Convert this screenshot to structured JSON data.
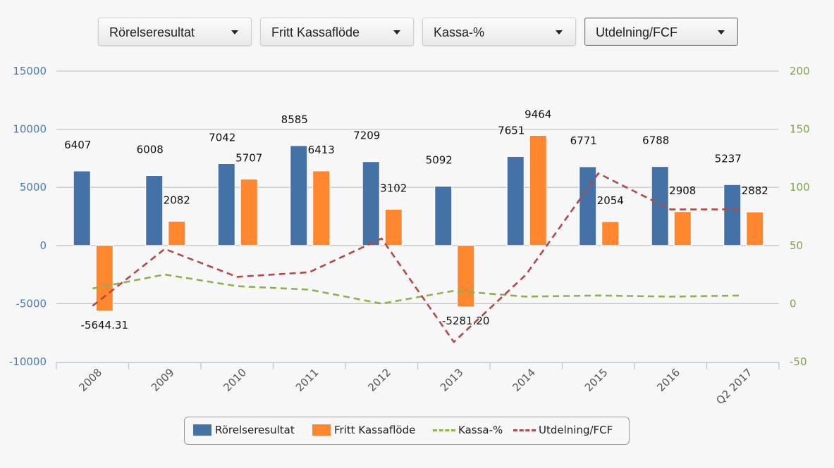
{
  "toolbar": {
    "dropdowns": [
      {
        "label": "Rörelseresultat"
      },
      {
        "label": "Fritt Kassaflöde"
      },
      {
        "label": "Kassa-%"
      },
      {
        "label": "Utdelning/FCF"
      }
    ]
  },
  "legend": {
    "items": [
      {
        "label": "Rörelseresultat"
      },
      {
        "label": "Fritt Kassaflöde"
      },
      {
        "label": "Kassa-%"
      },
      {
        "label": "Utdelning/FCF"
      }
    ]
  },
  "colors": {
    "rorelseresultat": "#4472a6",
    "fritt_kassaflode": "#fd862e",
    "kassa": "#8eb050",
    "utdelning": "#b04a46",
    "left_axis": "#4a7bb7",
    "right_axis": "#7ea44a"
  },
  "chart_data": {
    "type": "bar",
    "categories": [
      "2008",
      "2009",
      "2010",
      "2011",
      "2012",
      "2013",
      "2014",
      "2015",
      "2016",
      "Q2 2017"
    ],
    "left_axis": {
      "ylim": [
        -10000,
        15000
      ],
      "ticks": [
        "15000",
        "10000",
        "5000",
        "0",
        "-5000",
        "-10000"
      ]
    },
    "right_axis": {
      "ylim": [
        -50,
        200
      ],
      "ticks": [
        "200",
        "150",
        "100",
        "50",
        "0",
        "-50"
      ]
    },
    "grid": true,
    "legend_position": "bottom",
    "series": [
      {
        "name": "Rörelseresultat",
        "type": "bar",
        "axis": "left",
        "values": [
          6407,
          6008,
          7042,
          8585,
          7209,
          5092,
          7651,
          6771,
          6788,
          5237
        ],
        "labels": [
          "6407",
          "6008",
          "7042",
          "8585",
          "7209",
          "5092",
          "7651",
          "6771",
          "6788",
          "5237"
        ]
      },
      {
        "name": "Fritt Kassaflöde",
        "type": "bar",
        "axis": "left",
        "values": [
          -5644.31,
          2082,
          5707,
          6413,
          3102,
          -5281.2,
          9464,
          2054,
          2908,
          2882
        ],
        "labels": [
          "-5644.31",
          "2082",
          "5707",
          "6413",
          "3102",
          "-5281.20",
          "9464",
          "2054",
          "2908",
          "2882"
        ]
      },
      {
        "name": "Kassa-%",
        "type": "line",
        "axis": "right",
        "style": "dashed",
        "values": [
          13,
          25,
          15,
          12,
          0,
          11,
          6,
          7,
          6,
          7
        ]
      },
      {
        "name": "Utdelning/FCF",
        "type": "line",
        "axis": "right",
        "style": "dashed",
        "values": [
          -2,
          47,
          23,
          27,
          56,
          -33,
          25,
          112,
          81,
          81
        ]
      }
    ]
  }
}
